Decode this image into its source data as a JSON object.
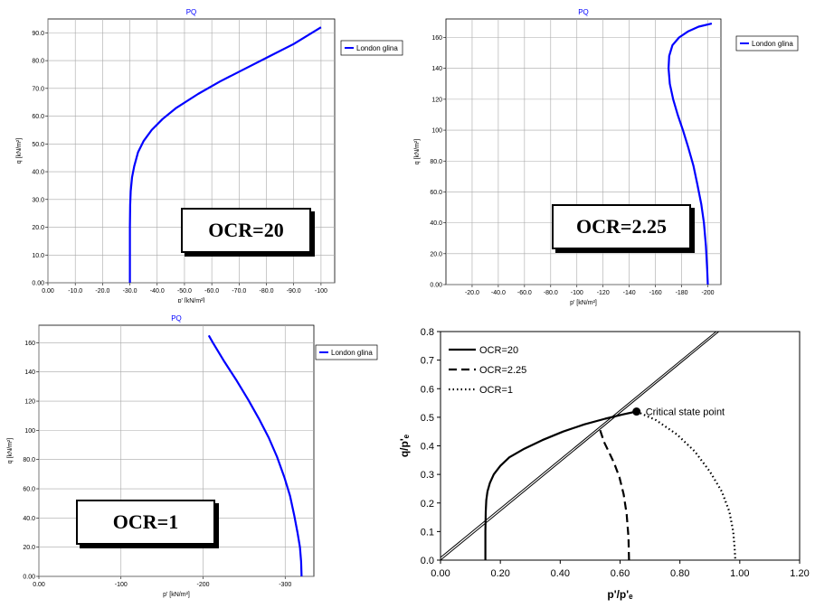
{
  "chart_data": [
    {
      "type": "line",
      "title": "PQ",
      "xlabel": "p' [kN/m²]",
      "ylabel": "q [kN/m²]",
      "x_ticks": [
        "0.00",
        "-10.0",
        "-20.0",
        "-30.0",
        "-40.0",
        "-50.0",
        "-60.0",
        "-70.0",
        "-80.0",
        "-90.0",
        "-100"
      ],
      "y_ticks": [
        "0.00",
        "10.0",
        "20.0",
        "30.0",
        "40.0",
        "50.0",
        "60.0",
        "70.0",
        "80.0",
        "90.0"
      ],
      "xlim": [
        0,
        -105
      ],
      "ylim": [
        0,
        95
      ],
      "grid": true,
      "legend_position": "top-right",
      "annotation": "OCR=20",
      "series": [
        {
          "name": "London glina",
          "color": "#0000ff",
          "x": [
            -30,
            -30,
            -30,
            -30.1,
            -30.3,
            -30.8,
            -31.6,
            -33,
            -35,
            -38,
            -42,
            -47,
            -55,
            -63,
            -72,
            -81,
            -90,
            -95,
            -100
          ],
          "y": [
            0,
            10,
            20,
            28,
            33,
            38,
            42,
            47,
            51,
            55,
            59,
            63,
            68,
            72.5,
            77,
            81.5,
            86,
            89,
            92
          ]
        }
      ]
    },
    {
      "type": "line",
      "title": "PQ",
      "xlabel": "p' [kN/m²]",
      "ylabel": "q [kN/m²]",
      "x_ticks": [
        "-20.0",
        "-40.0",
        "-60.0",
        "-80.0",
        "-100",
        "-120",
        "-140",
        "-160",
        "-180",
        "-200"
      ],
      "y_ticks": [
        "0.00",
        "20.0",
        "40.0",
        "60.0",
        "80.0",
        "100",
        "120",
        "140",
        "160"
      ],
      "xlim": [
        0,
        -210
      ],
      "ylim": [
        0,
        172
      ],
      "grid": true,
      "legend_position": "top-right",
      "annotation": "OCR=2.25",
      "series": [
        {
          "name": "London glina",
          "color": "#0000ff",
          "x": [
            -200,
            -199.5,
            -198.5,
            -197,
            -195,
            -192,
            -189,
            -185,
            -181,
            -177,
            -173.5,
            -171,
            -170,
            -170.5,
            -173,
            -178,
            -185,
            -193,
            -203
          ],
          "y": [
            0,
            10,
            25,
            40,
            52,
            65,
            77,
            89,
            100,
            110,
            120,
            130,
            140,
            148,
            155,
            160,
            164,
            167,
            169
          ]
        }
      ]
    },
    {
      "type": "line",
      "title": "PQ",
      "xlabel": "p' [kN/m²]",
      "ylabel": "q [kN/m²]",
      "x_ticks": [
        "0.00",
        "-100",
        "-200",
        "-300"
      ],
      "y_ticks": [
        "0.00",
        "20.0",
        "40.0",
        "60.0",
        "80.0",
        "100",
        "120",
        "140",
        "160"
      ],
      "xlim": [
        0,
        -335
      ],
      "ylim": [
        0,
        172
      ],
      "grid": true,
      "legend_position": "top-right",
      "annotation": "OCR=1",
      "series": [
        {
          "name": "London glina",
          "color": "#0000ff",
          "x": [
            -320,
            -319.5,
            -318,
            -315,
            -311,
            -306,
            -299,
            -290,
            -280,
            -268,
            -255,
            -241,
            -226,
            -212,
            -207
          ],
          "y": [
            0,
            10,
            20,
            30,
            42,
            55,
            68,
            82,
            95,
            108,
            121,
            134,
            147,
            160,
            165
          ]
        }
      ]
    },
    {
      "type": "line",
      "title": "",
      "xlabel": "p'/p'ₑ",
      "ylabel": "q/p'ₑ",
      "x_ticks": [
        "0.00",
        "0.20",
        "0.40",
        "0.60",
        "0.80",
        "1.00",
        "1.20"
      ],
      "y_ticks": [
        "0.0",
        "0.1",
        "0.2",
        "0.3",
        "0.4",
        "0.5",
        "0.6",
        "0.7",
        "0.8"
      ],
      "xlim": [
        0,
        1.2
      ],
      "ylim": [
        0,
        0.8
      ],
      "grid": false,
      "legend_position": "top-left",
      "annotation": "Critical state point",
      "critical_point": {
        "x": 0.655,
        "y": 0.52
      },
      "series": [
        {
          "name": "OCR=20",
          "style": "solid",
          "x": [
            0.15,
            0.15,
            0.151,
            0.153,
            0.157,
            0.165,
            0.178,
            0.2,
            0.23,
            0.28,
            0.34,
            0.41,
            0.48,
            0.55,
            0.61,
            0.655
          ],
          "y": [
            0,
            0.1,
            0.17,
            0.21,
            0.24,
            0.27,
            0.3,
            0.33,
            0.36,
            0.39,
            0.42,
            0.45,
            0.475,
            0.495,
            0.51,
            0.52
          ]
        },
        {
          "name": "OCR=2.25",
          "style": "dashed",
          "x": [
            0.63,
            0.628,
            0.622,
            0.612,
            0.598,
            0.58,
            0.562,
            0.548,
            0.538,
            0.532
          ],
          "y": [
            0,
            0.08,
            0.16,
            0.23,
            0.29,
            0.34,
            0.38,
            0.41,
            0.44,
            0.46
          ]
        },
        {
          "name": "OCR=1",
          "style": "dotted",
          "x": [
            0.655,
            0.72,
            0.79,
            0.85,
            0.9,
            0.94,
            0.965,
            0.978,
            0.983,
            0.985
          ],
          "y": [
            0.52,
            0.49,
            0.44,
            0.38,
            0.31,
            0.24,
            0.17,
            0.1,
            0.04,
            0
          ]
        }
      ],
      "line": {
        "name": "",
        "x": [
          0,
          1.2
        ],
        "y": [
          0,
          0.8
        ]
      }
    }
  ]
}
